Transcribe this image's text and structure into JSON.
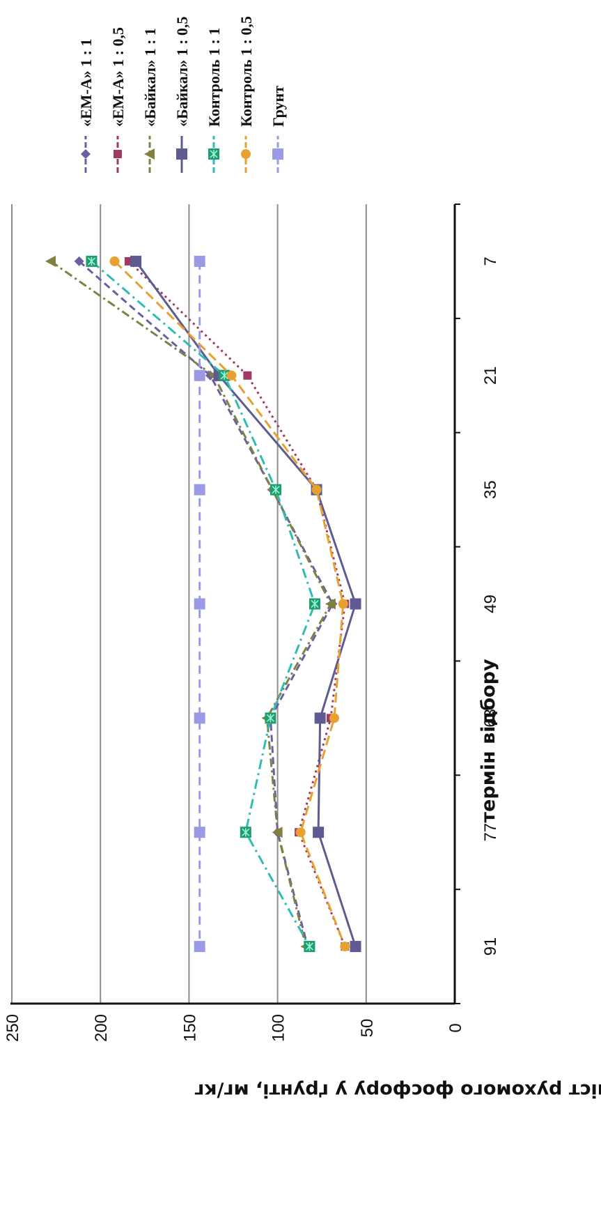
{
  "chart_data": {
    "type": "line",
    "xlabel": "термін відбору",
    "ylabel": "вміст рухомого фосфору у ґрунті, мг/кг",
    "x": [
      "7",
      "21",
      "35",
      "49",
      "63",
      "77",
      "91"
    ],
    "ylim": [
      0,
      250
    ],
    "yticks": [
      "0",
      "50",
      "100",
      "150",
      "200",
      "250"
    ],
    "grid": true,
    "legend_position": "right",
    "series": [
      {
        "name": "«ЕМ-А» 1 : 1",
        "values": [
          212,
          138,
          103,
          69,
          104,
          100,
          83
        ],
        "color": "#6b5fa1",
        "dash": "10 6",
        "marker": "diamond"
      },
      {
        "name": "«ЕМ-А» 1 : 0,5",
        "values": [
          184,
          117,
          78,
          62,
          70,
          88,
          62
        ],
        "color": "#9e3a63",
        "dash": "3 5",
        "marker": "square"
      },
      {
        "name": "«Байкал» 1 : 1",
        "values": [
          228,
          136,
          103,
          70,
          106,
          100,
          84
        ],
        "color": "#808040",
        "dash": "12 5 3 5",
        "marker": "triangle"
      },
      {
        "name": "«Байкал» 1 : 0,5",
        "values": [
          180,
          133,
          78,
          56,
          76,
          77,
          56
        ],
        "color": "#5d5b92",
        "dash": "",
        "marker": "square-large"
      },
      {
        "name": "Контроль 1 : 1",
        "values": [
          205,
          130,
          101,
          79,
          104,
          118,
          82
        ],
        "color": "#2ebcb4",
        "dash": "14 6 3 6",
        "marker": "square-star"
      },
      {
        "name": "Контроль 1 : 0,5",
        "values": [
          192,
          126,
          78,
          63,
          68,
          87,
          62
        ],
        "color": "#e8a030",
        "dash": "14 7",
        "marker": "circle"
      },
      {
        "name": "Грунт",
        "values": [
          144,
          144,
          144,
          144,
          144,
          144,
          144
        ],
        "color": "#9a9ae6",
        "dash": "12 8",
        "marker": "square-light"
      }
    ]
  }
}
